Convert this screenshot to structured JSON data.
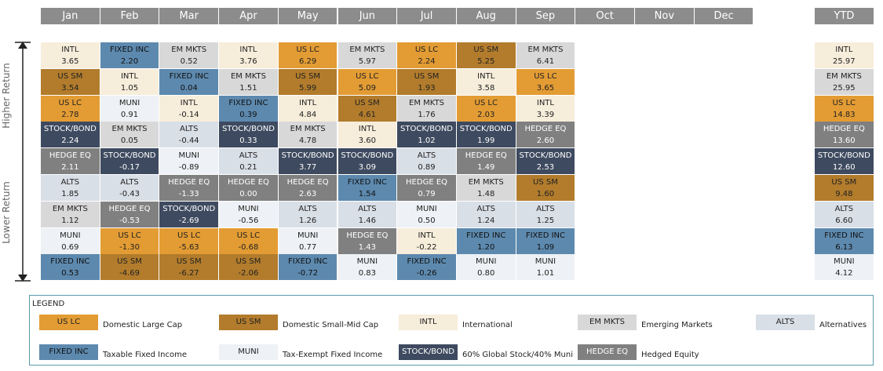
{
  "header": {
    "months": [
      "Jan",
      "Feb",
      "Mar",
      "Apr",
      "May",
      "Jun",
      "Jul",
      "Aug",
      "Sep",
      "Oct",
      "Nov",
      "Dec"
    ],
    "ytd": "YTD"
  },
  "axis": {
    "top": "Higher Return",
    "bottom": "Lower Return"
  },
  "columns": [
    {
      "cells": [
        {
          "label": "INTL",
          "value": "3.65"
        },
        {
          "label": "US SM",
          "value": "3.54"
        },
        {
          "label": "US LC",
          "value": "2.78"
        },
        {
          "label": "STOCK/BOND",
          "value": "2.24"
        },
        {
          "label": "HEDGE EQ",
          "value": "2.11"
        },
        {
          "label": "ALTS",
          "value": "1.85"
        },
        {
          "label": "EM MKTS",
          "value": "1.12"
        },
        {
          "label": "MUNI",
          "value": "0.69"
        },
        {
          "label": "FIXED INC",
          "value": "0.53"
        }
      ]
    },
    {
      "cells": [
        {
          "label": "FIXED INC",
          "value": "2.20"
        },
        {
          "label": "INTL",
          "value": "1.05"
        },
        {
          "label": "MUNI",
          "value": "0.91"
        },
        {
          "label": "EM MKTS",
          "value": "0.05"
        },
        {
          "label": "STOCK/BOND",
          "value": "-0.17"
        },
        {
          "label": "ALTS",
          "value": "-0.43"
        },
        {
          "label": "HEDGE EQ",
          "value": "-0.53"
        },
        {
          "label": "US LC",
          "value": "-1.30"
        },
        {
          "label": "US SM",
          "value": "-4.69"
        }
      ]
    },
    {
      "cells": [
        {
          "label": "EM MKTS",
          "value": "0.52"
        },
        {
          "label": "FIXED INC",
          "value": "0.04"
        },
        {
          "label": "INTL",
          "value": "-0.14"
        },
        {
          "label": "ALTS",
          "value": "-0.44"
        },
        {
          "label": "MUNI",
          "value": "-0.89"
        },
        {
          "label": "HEDGE EQ",
          "value": "-1.33"
        },
        {
          "label": "STOCK/BOND",
          "value": "-2.69"
        },
        {
          "label": "US LC",
          "value": "-5.63"
        },
        {
          "label": "US SM",
          "value": "-6.27"
        }
      ]
    },
    {
      "cells": [
        {
          "label": "INTL",
          "value": "3.76"
        },
        {
          "label": "EM MKTS",
          "value": "1.51"
        },
        {
          "label": "FIXED INC",
          "value": "0.39"
        },
        {
          "label": "STOCK/BOND",
          "value": "0.33"
        },
        {
          "label": "ALTS",
          "value": "0.21"
        },
        {
          "label": "HEDGE EQ",
          "value": "0.00"
        },
        {
          "label": "MUNI",
          "value": "-0.56"
        },
        {
          "label": "US LC",
          "value": "-0.68"
        },
        {
          "label": "US SM",
          "value": "-2.06"
        }
      ]
    },
    {
      "cells": [
        {
          "label": "US LC",
          "value": "6.29"
        },
        {
          "label": "US SM",
          "value": "5.99"
        },
        {
          "label": "INTL",
          "value": "4.84"
        },
        {
          "label": "EM MKTS",
          "value": "4.78"
        },
        {
          "label": "STOCK/BOND",
          "value": "3.77"
        },
        {
          "label": "HEDGE EQ",
          "value": "2.63"
        },
        {
          "label": "ALTS",
          "value": "1.26"
        },
        {
          "label": "MUNI",
          "value": "0.77"
        },
        {
          "label": "FIXED INC",
          "value": "-0.72"
        }
      ]
    },
    {
      "cells": [
        {
          "label": "EM MKTS",
          "value": "5.97"
        },
        {
          "label": "US LC",
          "value": "5.09"
        },
        {
          "label": "US SM",
          "value": "4.61"
        },
        {
          "label": "INTL",
          "value": "3.60"
        },
        {
          "label": "STOCK/BOND",
          "value": "3.09"
        },
        {
          "label": "FIXED INC",
          "value": "1.54"
        },
        {
          "label": "ALTS",
          "value": "1.46"
        },
        {
          "label": "HEDGE EQ",
          "value": "1.43"
        },
        {
          "label": "MUNI",
          "value": "0.83"
        }
      ]
    },
    {
      "cells": [
        {
          "label": "US LC",
          "value": "2.24"
        },
        {
          "label": "US SM",
          "value": "1.93"
        },
        {
          "label": "EM MKTS",
          "value": "1.76"
        },
        {
          "label": "STOCK/BOND",
          "value": "1.02"
        },
        {
          "label": "ALTS",
          "value": "0.89"
        },
        {
          "label": "HEDGE EQ",
          "value": "0.79"
        },
        {
          "label": "MUNI",
          "value": "0.50"
        },
        {
          "label": "INTL",
          "value": "-0.22"
        },
        {
          "label": "FIXED INC",
          "value": "-0.26"
        }
      ]
    },
    {
      "cells": [
        {
          "label": "US SM",
          "value": "5.25"
        },
        {
          "label": "INTL",
          "value": "3.58"
        },
        {
          "label": "US LC",
          "value": "2.03"
        },
        {
          "label": "STOCK/BOND",
          "value": "1.99"
        },
        {
          "label": "HEDGE EQ",
          "value": "1.49"
        },
        {
          "label": "EM MKTS",
          "value": "1.48"
        },
        {
          "label": "ALTS",
          "value": "1.24"
        },
        {
          "label": "FIXED INC",
          "value": "1.20"
        },
        {
          "label": "MUNI",
          "value": "0.80"
        }
      ]
    },
    {
      "cells": [
        {
          "label": "EM MKTS",
          "value": "6.41"
        },
        {
          "label": "US LC",
          "value": "3.65"
        },
        {
          "label": "INTL",
          "value": "3.39"
        },
        {
          "label": "HEDGE EQ",
          "value": "2.60"
        },
        {
          "label": "STOCK/BOND",
          "value": "2.53"
        },
        {
          "label": "US SM",
          "value": "1.60"
        },
        {
          "label": "ALTS",
          "value": "1.25"
        },
        {
          "label": "FIXED INC",
          "value": "1.09"
        },
        {
          "label": "MUNI",
          "value": "1.01"
        }
      ]
    }
  ],
  "ytd": {
    "cells": [
      {
        "label": "INTL",
        "value": "25.97"
      },
      {
        "label": "EM MKTS",
        "value": "25.95"
      },
      {
        "label": "US LC",
        "value": "14.83"
      },
      {
        "label": "HEDGE EQ",
        "value": "13.60"
      },
      {
        "label": "STOCK/BOND",
        "value": "12.60"
      },
      {
        "label": "US SM",
        "value": "9.48"
      },
      {
        "label": "ALTS",
        "value": "6.60"
      },
      {
        "label": "FIXED INC",
        "value": "6.13"
      },
      {
        "label": "MUNI",
        "value": "4.12"
      }
    ]
  },
  "legend": {
    "title": "LEGEND",
    "items": [
      {
        "code": "US LC",
        "description": "Domestic Large Cap",
        "color": "#e39c34",
        "text_color": "#222"
      },
      {
        "code": "US SM",
        "description": "Domestic Small-Mid Cap",
        "color": "#b27c2c",
        "text_color": "#222"
      },
      {
        "code": "INTL",
        "description": "International",
        "color": "#f7eddb",
        "text_color": "#222"
      },
      {
        "code": "EM MKTS",
        "description": "Emerging Markets",
        "color": "#d8d8d8",
        "text_color": "#222"
      },
      {
        "code": "ALTS",
        "description": "Alternatives",
        "color": "#d9dfe7",
        "text_color": "#222"
      },
      {
        "code": "FIXED INC",
        "description": "Taxable Fixed Income",
        "color": "#5d89ae",
        "text_color": "#111"
      },
      {
        "code": "MUNI",
        "description": "Tax-Exempt Fixed Income",
        "color": "#eef1f5",
        "text_color": "#222"
      },
      {
        "code": "STOCK/BOND",
        "description": "60% Global Stock/40% Muni",
        "color": "#3e4a5f",
        "text_color": "#fff"
      },
      {
        "code": "HEDGE EQ",
        "description": "Hedged Equity",
        "color": "#808080",
        "text_color": "#fff"
      }
    ]
  }
}
